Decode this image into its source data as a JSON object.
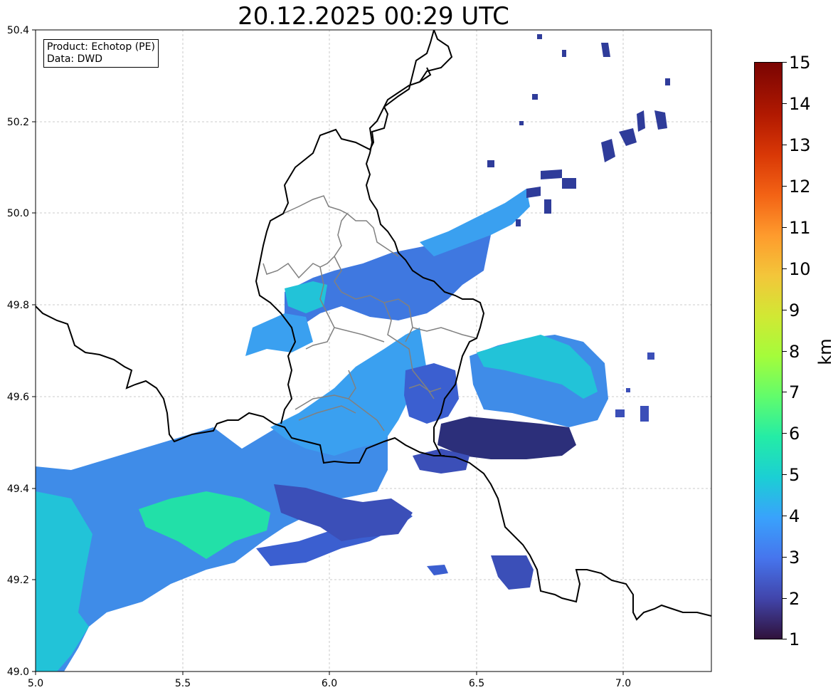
{
  "title": "20.12.2025 00:29 UTC",
  "info": {
    "product": "Product: Echotop (PE)",
    "data": "Data: DWD"
  },
  "axes": {
    "x_ticks": [
      "5.0",
      "5.5",
      "6.0",
      "6.5",
      "7.0"
    ],
    "y_ticks": [
      "50.4",
      "50.2",
      "50.0",
      "49.8",
      "49.6",
      "49.4",
      "49.2",
      "49.0"
    ],
    "lon_range": [
      5.0,
      7.3
    ],
    "lat_range": [
      49.0,
      50.4
    ]
  },
  "colorbar": {
    "unit": "km",
    "ticks": [
      "15",
      "14",
      "13",
      "12",
      "11",
      "10",
      "9",
      "8",
      "7",
      "6",
      "5",
      "4",
      "3",
      "2",
      "1"
    ],
    "range": [
      1,
      15
    ],
    "colormap": "turbo"
  },
  "colors": {
    "echo_cyan": "#22c3d8",
    "echo_blue": "#3aa0f0",
    "echo_mid": "#3f78e0",
    "echo_dark": "#3b4fb8",
    "echo_deep": "#2c2f7a",
    "echo_green": "#22e0a8",
    "border_country": "#000000",
    "border_region": "#808080"
  }
}
